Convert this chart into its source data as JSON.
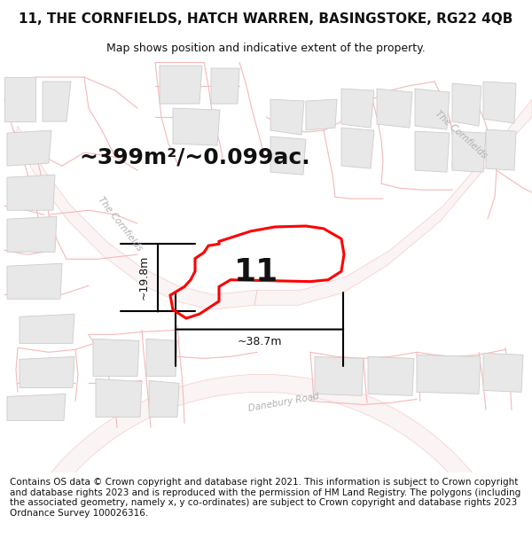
{
  "title": "11, THE CORNFIELDS, HATCH WARREN, BASINGSTOKE, RG22 4QB",
  "subtitle": "Map shows position and indicative extent of the property.",
  "area_text": "~399m²/~0.099ac.",
  "width_label": "~38.7m",
  "height_label": "~19.8m",
  "plot_number": "11",
  "footer": "Contains OS data © Crown copyright and database right 2021. This information is subject to Crown copyright and database rights 2023 and is reproduced with the permission of HM Land Registry. The polygons (including the associated geometry, namely x, y co-ordinates) are subject to Crown copyright and database rights 2023 Ordnance Survey 100026316.",
  "map_bg": "#ffffff",
  "plot_edge": "#ff0000",
  "plot_lw": 2.2,
  "road_line_color": "#f5b8b8",
  "road_line_lw": 1.0,
  "building_face": "#e8e8e8",
  "building_edge": "#cccccc",
  "building_lw": 0.6,
  "title_fontsize": 11,
  "subtitle_fontsize": 9,
  "area_fontsize": 18,
  "plot_num_fontsize": 26,
  "footer_fontsize": 7.5,
  "road_label_color": "#b0b0b0",
  "dim_color": "#111111",
  "title_color": "#111111"
}
